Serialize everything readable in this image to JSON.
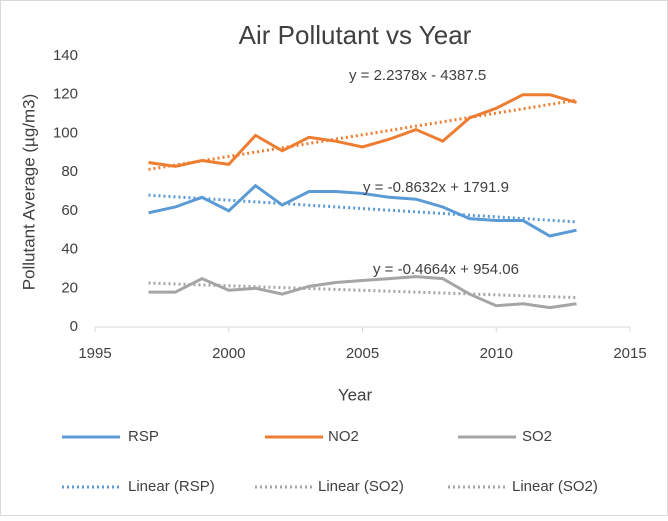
{
  "chart_data": {
    "type": "line",
    "title": "Air Pollutant vs Year",
    "x_label": "Year",
    "y_label": "Pollutant Average (µg/m3)",
    "x": [
      1997,
      1998,
      1999,
      2000,
      2001,
      2002,
      2003,
      2004,
      2005,
      2006,
      2007,
      2008,
      2009,
      2010,
      2011,
      2012,
      2013
    ],
    "series": [
      {
        "name": "RSP",
        "color": "#5b9bd5",
        "values": [
          59,
          62,
          67,
          60,
          73,
          63,
          70,
          70,
          69,
          67,
          66,
          62,
          56,
          55,
          55,
          47,
          50
        ]
      },
      {
        "name": "NO2",
        "color": "#ed7d31",
        "values": [
          85,
          83,
          86,
          84,
          99,
          91,
          98,
          96,
          93,
          97,
          102,
          96,
          108,
          113,
          120,
          120,
          116
        ]
      },
      {
        "name": "SO2",
        "color": "#a5a5a5",
        "values": [
          18,
          18,
          25,
          19,
          20,
          17,
          21,
          23,
          24,
          25,
          26,
          25,
          17,
          11,
          12,
          10,
          12
        ]
      }
    ],
    "trendlines": [
      {
        "name": "Linear (RSP)",
        "color": "#5b9bd5",
        "legend_color": "#5b9bd5",
        "x": [
          1997,
          2013
        ],
        "values": [
          68.1,
          54.3
        ],
        "equation": "y = -0.8632x + 1791.9"
      },
      {
        "name": "Linear (SO2)",
        "color": "#ed7d31",
        "legend_color": "#a5a5a5",
        "x": [
          1997,
          2013
        ],
        "values": [
          81.4,
          117.2
        ],
        "equation": "y = 2.2378x - 4387.5"
      },
      {
        "name": "Linear (SO2)",
        "color": "#a5a5a5",
        "legend_color": "#a5a5a5",
        "x": [
          1997,
          2013
        ],
        "values": [
          22.7,
          15.2
        ],
        "equation": "y = -0.4664x + 954.06"
      }
    ],
    "xlim": [
      1995,
      2015
    ],
    "xticks": [
      1995,
      2000,
      2005,
      2010,
      2015
    ],
    "ylim": [
      0,
      140
    ],
    "yticks": [
      0,
      20,
      40,
      60,
      80,
      100,
      120,
      140
    ],
    "grid": false
  }
}
